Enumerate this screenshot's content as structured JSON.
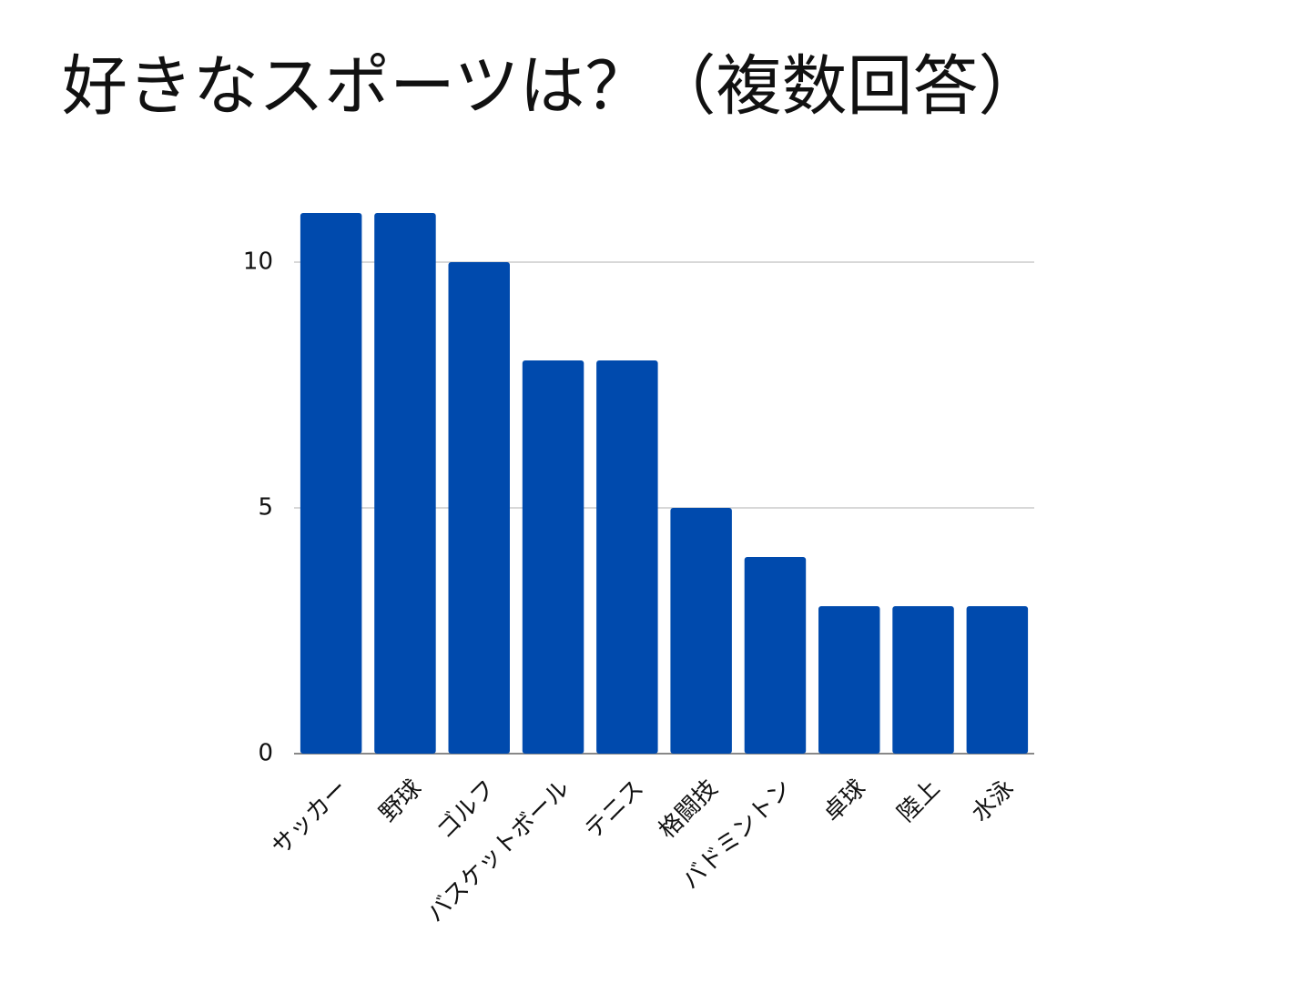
{
  "chart_data": {
    "type": "bar",
    "title": "好きなスポーツは？（複数回答）",
    "categories": [
      "サッカー",
      "野球",
      "ゴルフ",
      "バスケットボール",
      "テニス",
      "格闘技",
      "バドミントン",
      "卓球",
      "陸上",
      "水泳"
    ],
    "values": [
      11,
      11,
      10,
      8,
      8,
      5,
      4,
      3,
      3,
      3
    ],
    "color": "#004aad",
    "ylim": [
      0,
      11
    ],
    "yticks": [
      0,
      5,
      10
    ],
    "grid": true
  }
}
